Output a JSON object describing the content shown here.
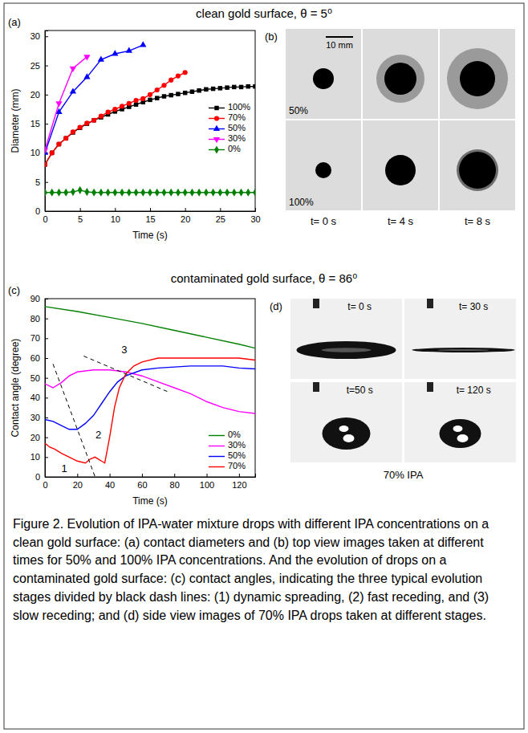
{
  "figure_headings": [
    "clean gold surface, θ = 5⁰",
    "contaminated gold surface, θ = 86⁰"
  ],
  "chart_data": [
    {
      "type": "line",
      "panel_label": "(a)",
      "x_label": "Time (s)",
      "y_label": "Diameter (mm)",
      "xlim": [
        0,
        30
      ],
      "xticks": [
        0,
        5,
        10,
        15,
        20,
        25,
        30
      ],
      "ylim": [
        0,
        31
      ],
      "yticks": [
        0,
        5,
        10,
        15,
        20,
        25,
        30
      ],
      "legend": "right",
      "series": [
        {
          "name": "100%",
          "color": "#000000",
          "marker": "square",
          "line_style": "solid",
          "x": [
            0,
            1,
            2,
            3,
            4,
            5,
            6,
            7,
            8,
            9,
            10,
            11,
            12,
            13,
            14,
            15,
            16,
            17,
            18,
            19,
            20,
            21,
            22,
            23,
            24,
            25,
            26,
            27,
            28,
            29,
            30
          ],
          "values": [
            8,
            10,
            11.5,
            12.5,
            13.5,
            14.3,
            15,
            15.6,
            16.1,
            16.6,
            17.1,
            17.5,
            17.9,
            18.3,
            18.7,
            19.1,
            19.4,
            19.7,
            19.9,
            20.1,
            20.3,
            20.5,
            20.7,
            20.9,
            21,
            21.1,
            21.2,
            21.3,
            21.3,
            21.4,
            21.4
          ]
        },
        {
          "name": "70%",
          "color": "#ff0000",
          "marker": "circle",
          "line_style": "solid",
          "x": [
            0,
            1,
            2,
            3,
            4,
            5,
            6,
            7,
            8,
            9,
            10,
            11,
            12,
            13,
            14,
            15,
            16,
            17,
            18,
            19,
            20
          ],
          "values": [
            8,
            10,
            11.5,
            12.5,
            13.6,
            14.4,
            15.1,
            15.6,
            16.3,
            17,
            17.5,
            18,
            18.5,
            19,
            19.3,
            20,
            20.8,
            21.6,
            22.5,
            23.2,
            23.8
          ]
        },
        {
          "name": "50%",
          "color": "#0000ff",
          "marker": "triangle-up",
          "line_style": "solid",
          "x": [
            0,
            2,
            4,
            6,
            8,
            10,
            12,
            14
          ],
          "values": [
            10,
            17,
            20.5,
            23,
            26,
            27,
            27.5,
            28.5
          ]
        },
        {
          "name": "30%",
          "color": "#ff00ff",
          "marker": "triangle-down",
          "line_style": "solid",
          "x": [
            0,
            2,
            4,
            6
          ],
          "values": [
            10.5,
            18.5,
            24.5,
            26.5
          ]
        },
        {
          "name": "0%",
          "color": "#008000",
          "marker": "diamond",
          "line_style": "solid",
          "x": [
            0,
            1,
            2,
            3,
            4,
            5,
            6,
            7,
            8,
            9,
            10,
            11,
            12,
            13,
            14,
            15,
            16,
            17,
            18,
            19,
            20,
            21,
            22,
            23,
            24,
            25,
            26,
            27,
            28,
            29,
            30
          ],
          "values": [
            3.2,
            3.2,
            3.2,
            3.2,
            3.3,
            3.6,
            3.3,
            3.2,
            3.2,
            3.2,
            3.2,
            3.2,
            3.2,
            3.2,
            3.2,
            3.2,
            3.2,
            3.2,
            3.2,
            3.2,
            3.2,
            3.2,
            3.2,
            3.2,
            3.2,
            3.2,
            3.2,
            3.2,
            3.2,
            3.2,
            3.2
          ]
        }
      ]
    },
    {
      "type": "line",
      "panel_label": "(c)",
      "x_label": "Time (s)",
      "y_label": "Contact angle (degree)",
      "xlim": [
        0,
        130
      ],
      "xticks": [
        0,
        20,
        40,
        60,
        80,
        100,
        120
      ],
      "ylim": [
        0,
        90
      ],
      "yticks": [
        0,
        10,
        20,
        30,
        40,
        50,
        60,
        70,
        80,
        90
      ],
      "legend": "bottom right",
      "series": [
        {
          "name": "0%",
          "color": "#008000",
          "marker": "none",
          "line_style": "solid",
          "x": [
            0,
            20,
            40,
            60,
            80,
            100,
            120,
            130
          ],
          "values": [
            86,
            83.5,
            80.5,
            77.5,
            74,
            70.5,
            67,
            65
          ]
        },
        {
          "name": "30%",
          "color": "#ff00ff",
          "marker": "none",
          "line_style": "solid",
          "x": [
            0,
            5,
            10,
            15,
            20,
            25,
            30,
            40,
            50,
            60,
            70,
            80,
            90,
            100,
            110,
            120,
            130
          ],
          "values": [
            47,
            45,
            47.5,
            51,
            53,
            53.5,
            54,
            54,
            53,
            51,
            48,
            45,
            42,
            38,
            35,
            33,
            32
          ]
        },
        {
          "name": "50%",
          "color": "#0000ff",
          "marker": "none",
          "line_style": "solid",
          "x": [
            0,
            5,
            10,
            15,
            20,
            25,
            30,
            35,
            40,
            45,
            50,
            60,
            70,
            80,
            90,
            100,
            110,
            120,
            130
          ],
          "values": [
            29,
            28,
            26,
            24,
            24,
            27,
            31,
            37,
            43,
            48,
            51,
            54,
            55,
            55.5,
            56,
            56,
            56,
            55,
            54.5
          ]
        },
        {
          "name": "70%",
          "color": "#ff0000",
          "marker": "none",
          "line_style": "solid",
          "x": [
            0,
            3,
            6,
            10,
            15,
            20,
            25,
            28,
            31,
            33,
            35,
            37,
            40,
            43,
            46,
            50,
            55,
            60,
            70,
            80,
            100,
            120,
            130
          ],
          "values": [
            17,
            15,
            14,
            12,
            10,
            8,
            7,
            9,
            10,
            9,
            8,
            7,
            20,
            35,
            45,
            52,
            56,
            58,
            60,
            60,
            60,
            60,
            59
          ]
        }
      ],
      "stage_lines": [
        {
          "x": [
            5,
            31
          ],
          "y": [
            57,
            0
          ]
        },
        {
          "x": [
            24,
            76
          ],
          "y": [
            61,
            43
          ]
        }
      ],
      "annotations": [
        {
          "text": "1",
          "x": 12,
          "y": 4
        },
        {
          "text": "2",
          "x": 33,
          "y": 21
        },
        {
          "text": "3",
          "x": 49,
          "y": 64
        }
      ]
    }
  ],
  "images": [
    {
      "panel_label": "(b)",
      "row_labels": [
        "50%",
        "100%"
      ],
      "scale_bar": "10 mm",
      "times": [
        "t= 0 s",
        "t= 4 s",
        "t= 8 s"
      ]
    },
    {
      "panel_label": "(d)",
      "times": [
        "t= 0 s",
        "t= 30 s",
        "t=50 s",
        "t= 120 s"
      ],
      "caption": "70% IPA"
    }
  ],
  "caption": "Figure 2. Evolution of IPA-water mixture drops with different IPA concentrations on a clean gold surface: (a) contact diameters and (b) top view images taken at different times for 50% and 100% IPA concentrations. And the evolution of drops on a contaminated gold surface: (c) contact angles, indicating the three typical evolution stages divided by black dash lines: (1) dynamic spreading, (2) fast receding, and (3) slow receding; and (d) side view images of 70% IPA drops taken at different stages."
}
